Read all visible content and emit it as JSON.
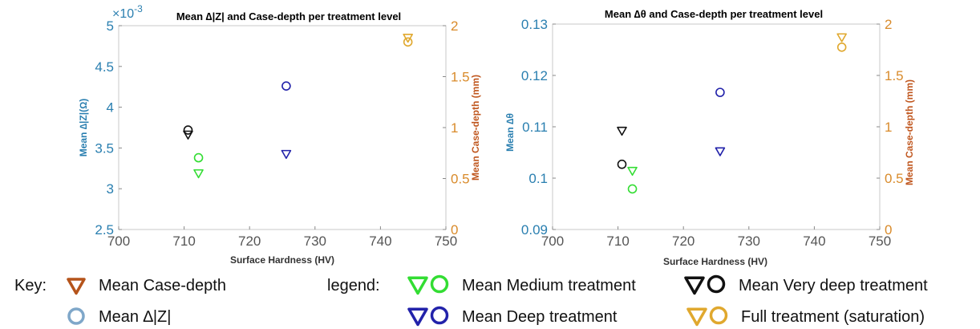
{
  "chart_data": [
    {
      "type": "scatter",
      "title": "Mean ∆|Z| and Case-depth per treatment level",
      "xlabel": "Surface Hardness (HV)",
      "ylabel_left": "Mean ∆|Z|(Ω)",
      "ylabel_right": "Mean Case-depth (mm)",
      "left_axis_multiplier": "×10",
      "left_axis_multiplier_exp": "-3",
      "xlim": [
        700,
        750
      ],
      "ylim_left": [
        2.5,
        5
      ],
      "ylim_right": [
        0,
        2
      ],
      "xticks": [
        "700",
        "710",
        "720",
        "730",
        "740",
        "750"
      ],
      "yticks_left": [
        "2.5",
        "3",
        "3.5",
        "4",
        "4.5",
        "5"
      ],
      "yticks_right": [
        "0",
        "0.5",
        "1",
        "1.5",
        "2"
      ],
      "grid": false,
      "series": [
        {
          "name": "Mean Medium treatment",
          "color": "#33dd33",
          "x": 712.2,
          "left_value": 3.38,
          "right_value": 0.55
        },
        {
          "name": "Mean Very deep treatment",
          "color": "#111111",
          "x": 710.6,
          "left_value": 3.72,
          "right_value": 0.93
        },
        {
          "name": "Mean Deep treatment",
          "color": "#2222aa",
          "x": 725.6,
          "left_value": 4.26,
          "right_value": 0.74
        },
        {
          "name": "Full treatment (saturation)",
          "color": "#e0a82e",
          "x": 744.2,
          "left_value": 4.8,
          "right_value": 1.88
        }
      ]
    },
    {
      "type": "scatter",
      "title": "Mean ∆θ and Case-depth per treatment level",
      "xlabel": "Surface Hardness (HV)",
      "ylabel_left": "Mean ∆θ",
      "ylabel_right": "Mean Case-depth (mm)",
      "xlim": [
        700,
        750
      ],
      "ylim_left": [
        0.09,
        0.13
      ],
      "ylim_right": [
        0,
        2
      ],
      "xticks": [
        "700",
        "710",
        "720",
        "730",
        "740",
        "750"
      ],
      "yticks_left": [
        "0.09",
        "0.1",
        "0.11",
        "0.12",
        "0.13"
      ],
      "yticks_right": [
        "0",
        "0.5",
        "1",
        "1.5",
        "2"
      ],
      "grid": false,
      "series": [
        {
          "name": "Mean Medium treatment",
          "color": "#33dd33",
          "x": 712.2,
          "left_value": 0.0979,
          "right_value": 0.57
        },
        {
          "name": "Mean Very deep treatment",
          "color": "#111111",
          "x": 710.6,
          "left_value": 0.1027,
          "right_value": 0.96
        },
        {
          "name": "Mean Deep treatment",
          "color": "#2222aa",
          "x": 725.6,
          "left_value": 0.1167,
          "right_value": 0.76
        },
        {
          "name": "Full treatment (saturation)",
          "color": "#e0a82e",
          "x": 744.2,
          "left_value": 0.1255,
          "right_value": 1.87
        }
      ]
    }
  ],
  "key": {
    "label": "Key:",
    "case_depth": "Mean Case-depth",
    "delta_z": "Mean ∆|Z|",
    "triangle_color": "#b5541b",
    "circle_color": "#7fa7c9"
  },
  "legend": {
    "label": "legend:",
    "medium": "Mean Medium treatment",
    "very_deep": "Mean Very deep treatment",
    "deep": "Mean Deep treatment",
    "full": "Full treatment (saturation)"
  }
}
